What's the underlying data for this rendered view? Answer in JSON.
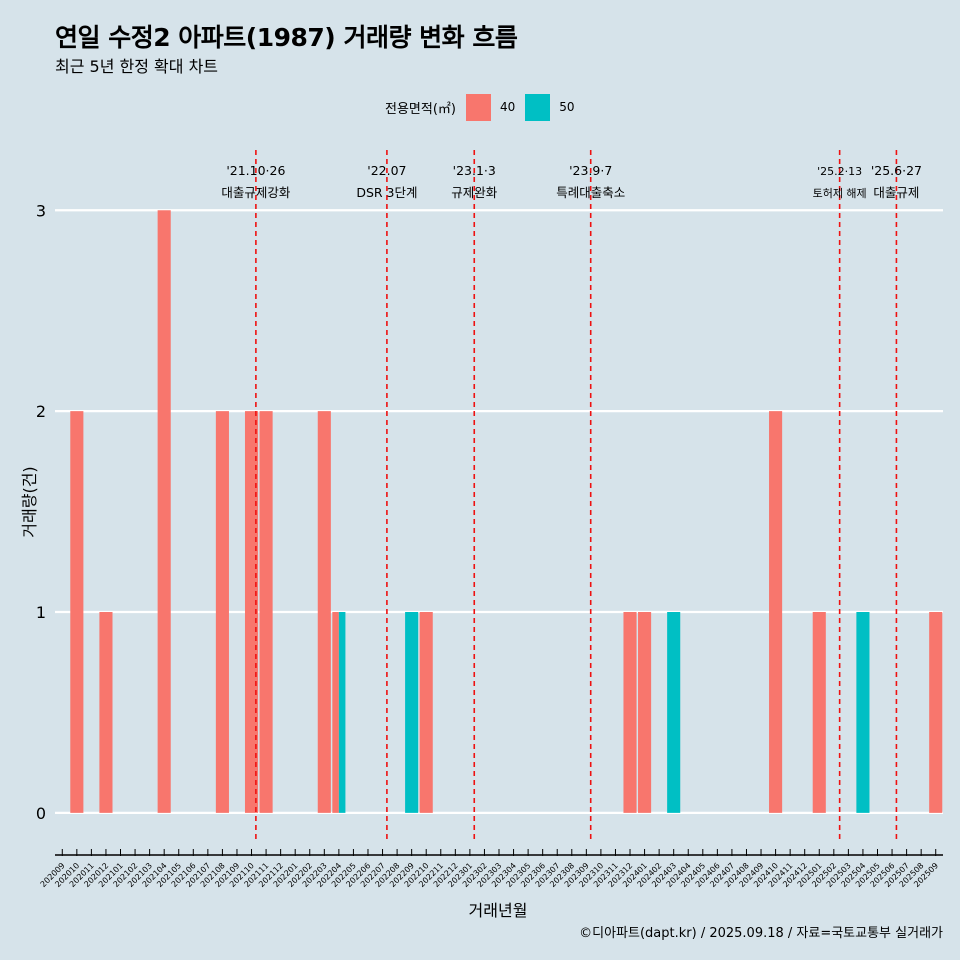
{
  "title": "연일 수정2 아파트(1987) 거래량 변화 흐름",
  "subtitle": "최근 5년 한정 확대 차트",
  "caption": "©디아파트(dapt.kr) / 2025.09.18 / 자료=국토교통부 실거래가",
  "legend": {
    "title": "전용면적(㎡)",
    "items": [
      {
        "label": "40",
        "color": "#f8766d"
      },
      {
        "label": "50",
        "color": "#00bfc4"
      }
    ]
  },
  "chart_data": {
    "type": "bar",
    "xlabel": "거래년월",
    "ylabel": "거래량(건)",
    "ylim": [
      -0.15,
      3.3
    ],
    "yticks": [
      0,
      1,
      2,
      3
    ],
    "grid": true,
    "legend_position": "top",
    "categories": [
      "202009",
      "202010",
      "202011",
      "202012",
      "202101",
      "202102",
      "202103",
      "202104",
      "202105",
      "202106",
      "202107",
      "202108",
      "202109",
      "202110",
      "202111",
      "202112",
      "202201",
      "202202",
      "202203",
      "202204",
      "202205",
      "202206",
      "202207",
      "202208",
      "202209",
      "202210",
      "202211",
      "202212",
      "202301",
      "202302",
      "202303",
      "202304",
      "202305",
      "202306",
      "202307",
      "202308",
      "202309",
      "202310",
      "202311",
      "202312",
      "202401",
      "202402",
      "202403",
      "202404",
      "202405",
      "202406",
      "202407",
      "202408",
      "202409",
      "202410",
      "202411",
      "202412",
      "202501",
      "202502",
      "202503",
      "202504",
      "202505",
      "202506",
      "202507",
      "202508",
      "202509"
    ],
    "series": [
      {
        "name": "40",
        "color": "#f8766d",
        "points": [
          {
            "month": "202010",
            "value": 2,
            "dodge": false
          },
          {
            "month": "202012",
            "value": 1,
            "dodge": false
          },
          {
            "month": "202104",
            "value": 3,
            "dodge": false
          },
          {
            "month": "202108",
            "value": 2,
            "dodge": false
          },
          {
            "month": "202110",
            "value": 2,
            "dodge": false
          },
          {
            "month": "202111",
            "value": 2,
            "dodge": false
          },
          {
            "month": "202203",
            "value": 2,
            "dodge": false
          },
          {
            "month": "202204",
            "value": 1,
            "dodge": true
          },
          {
            "month": "202210",
            "value": 1,
            "dodge": false
          },
          {
            "month": "202312",
            "value": 1,
            "dodge": false
          },
          {
            "month": "202401",
            "value": 1,
            "dodge": false
          },
          {
            "month": "202410",
            "value": 2,
            "dodge": false
          },
          {
            "month": "202501",
            "value": 1,
            "dodge": false
          },
          {
            "month": "202509",
            "value": 1,
            "dodge": false
          }
        ]
      },
      {
        "name": "50",
        "color": "#00bfc4",
        "points": [
          {
            "month": "202204",
            "value": 1,
            "dodge": true
          },
          {
            "month": "202209",
            "value": 1,
            "dodge": false
          },
          {
            "month": "202403",
            "value": 1,
            "dodge": false
          },
          {
            "month": "202504",
            "value": 1,
            "dodge": false
          }
        ]
      }
    ],
    "events": [
      {
        "pos": 13.3,
        "date": "'21.10·26",
        "label": "대출규제강화",
        "size": "normal"
      },
      {
        "pos": 22.3,
        "date": "'22.07",
        "label": "DSR 3단계",
        "size": "normal"
      },
      {
        "pos": 28.3,
        "date": "'23.1·3",
        "label": "규제완화",
        "size": "normal"
      },
      {
        "pos": 36.3,
        "date": "'23.9·7",
        "label": "특례대출축소",
        "size": "normal"
      },
      {
        "pos": 53.4,
        "date": "'25.2·13",
        "label": "토허제 해제",
        "size": "small"
      },
      {
        "pos": 57.3,
        "date": "'25.6·27",
        "label": "대출규제",
        "size": "normal"
      }
    ]
  }
}
